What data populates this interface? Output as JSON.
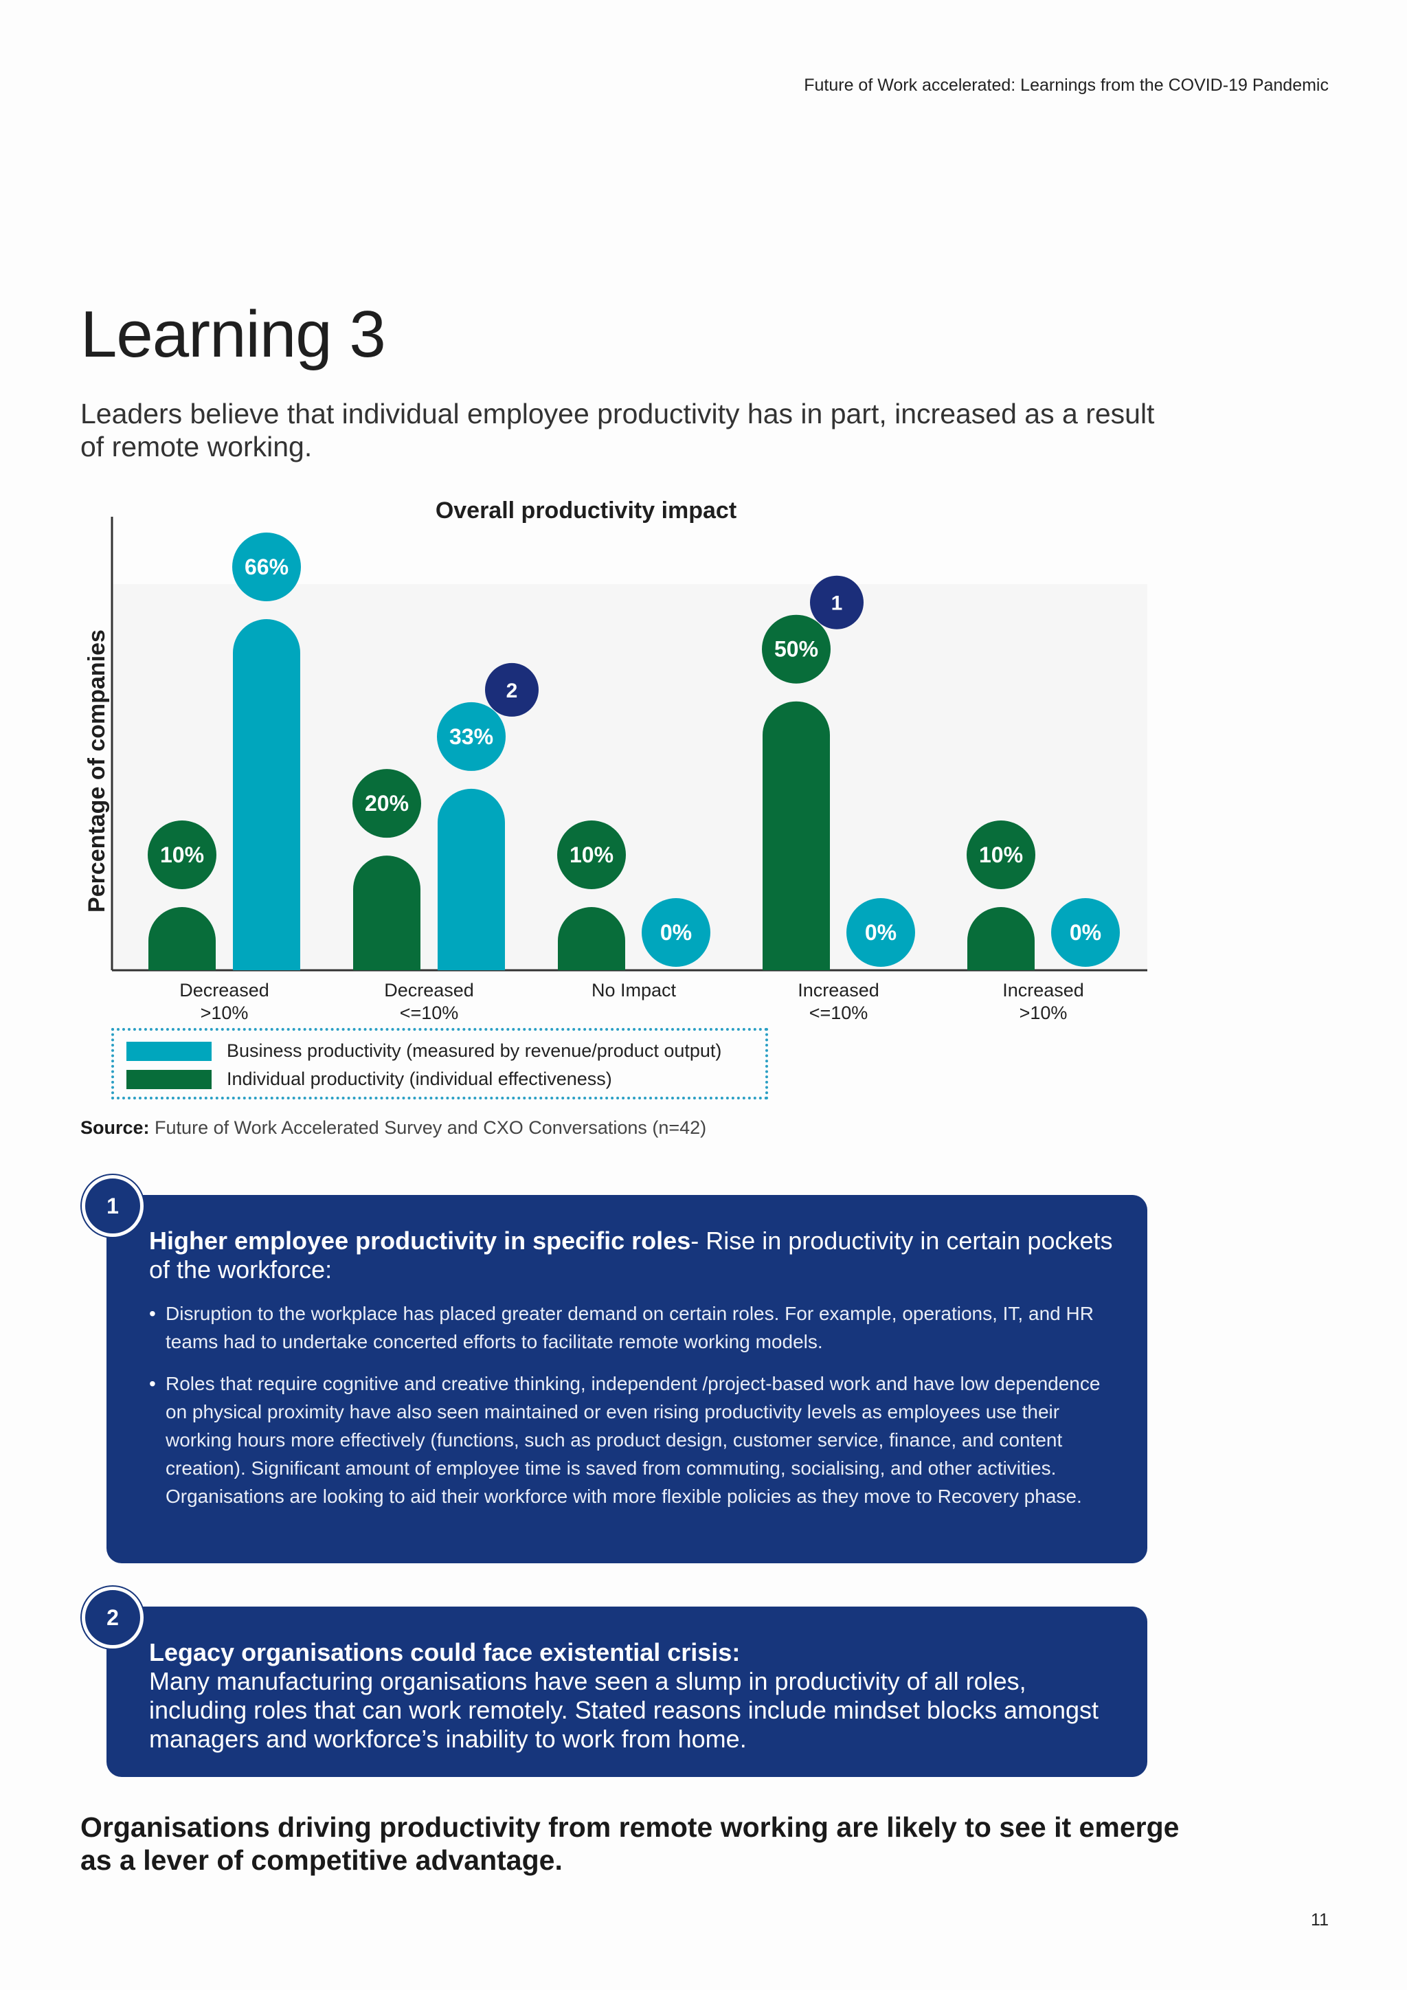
{
  "header": {
    "running_title": "Future of Work accelerated: Learnings from the COVID-19 Pandemic"
  },
  "page": {
    "title": "Learning 3",
    "subtitle": "Leaders believe that individual employee productivity has in part, increased as a result of remote working."
  },
  "colors": {
    "business": "#00a6bd",
    "individual": "#086d3a",
    "marker": "#1b2e7a",
    "callout_bg": "#17367c"
  },
  "chart_data": {
    "type": "bar",
    "title": "Overall productivity impact",
    "ylabel": "Percentage of companies",
    "xlabel": "",
    "ylim": [
      0,
      66
    ],
    "categories": [
      "Decreased\n>10%",
      "Decreased\n<=10%",
      "No Impact",
      "Increased\n<=10%",
      "Increased\n>10%"
    ],
    "series": [
      {
        "name": "Individual productivity (individual effectiveness)",
        "values": [
          10,
          20,
          10,
          50,
          10
        ],
        "color": "#086d3a"
      },
      {
        "name": "Business productivity (measured by revenue/product output)",
        "values": [
          66,
          33,
          0,
          0,
          0
        ],
        "color": "#00a6bd"
      }
    ],
    "data_labels": {
      "individual": [
        "10%",
        "20%",
        "10%",
        "50%",
        "10%"
      ],
      "business": [
        "66%",
        "33%",
        "0%",
        "0%",
        "0%"
      ]
    },
    "markers": [
      {
        "label": "1",
        "category_index": 3,
        "series": "individual"
      },
      {
        "label": "2",
        "category_index": 1,
        "series": "business"
      }
    ],
    "legend_order": [
      "Business productivity (measured by revenue/product output)",
      "Individual productivity (individual effectiveness)"
    ],
    "legend_placement": "bottom-left",
    "grid": false
  },
  "legend": {
    "business": "Business productivity (measured by revenue/product output)",
    "individual": "Individual productivity (individual effectiveness)"
  },
  "source": {
    "label": "Source:",
    "text": "Future of Work Accelerated Survey and CXO Conversations (n=42)"
  },
  "callouts": [
    {
      "number": "1",
      "heading_bold": "Higher employee productivity in specific roles",
      "heading_rest": "- Rise in productivity in certain pockets of the workforce:",
      "bullets": [
        "Disruption to the workplace has placed greater demand on certain roles. For example, operations, IT, and HR teams had to undertake concerted efforts to facilitate remote working  models.",
        "Roles that require cognitive and creative thinking, independent /project-based work and have low dependence on physical proximity have also seen maintained or even rising productivity levels as employees use their working hours more effectively (functions, such as product design, customer service, finance, and content creation). Significant amount of employee time is saved from commuting, socialising, and other activities. Organisations are looking to aid their workforce with more flexible policies as they move to Recovery phase."
      ]
    },
    {
      "number": "2",
      "heading_bold": "Legacy organisations could face existential crisis:",
      "body": "Many manufacturing organisations have seen a slump in productivity of all roles, including roles that can work remotely. Stated reasons include mindset blocks amongst managers and workforce’s inability to work from home."
    }
  ],
  "conclusion": "Organisations driving productivity from remote working are likely to see it emerge as a lever of competitive advantage.",
  "page_number": "11"
}
